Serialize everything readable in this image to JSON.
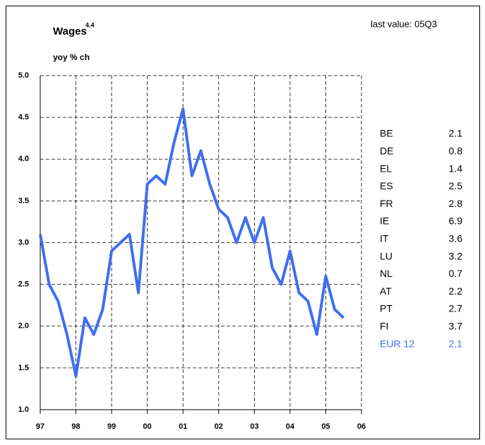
{
  "chart_data": {
    "type": "line",
    "title": "Wages",
    "title_note": "4.4",
    "subtitle": "yoy % ch",
    "annotation": "last value: 05Q3",
    "x": [
      1997,
      1997.25,
      1997.5,
      1997.75,
      1998,
      1998.25,
      1998.5,
      1998.75,
      1999,
      1999.25,
      1999.5,
      1999.75,
      2000,
      2000.25,
      2000.5,
      2000.75,
      2001,
      2001.25,
      2001.5,
      2001.75,
      2002,
      2002.25,
      2002.5,
      2002.75,
      2003,
      2003.25,
      2003.5,
      2003.75,
      2004,
      2004.25,
      2004.5,
      2004.75,
      2005,
      2005.25,
      2005.5
    ],
    "series": [
      {
        "color": "#3f6ef0",
        "values": [
          3.1,
          2.5,
          2.3,
          1.9,
          1.4,
          2.1,
          1.9,
          2.2,
          2.9,
          3.0,
          3.1,
          2.4,
          3.7,
          3.8,
          3.7,
          4.2,
          4.6,
          3.8,
          4.1,
          3.7,
          3.4,
          3.3,
          3.0,
          3.3,
          3.0,
          3.3,
          2.7,
          2.5,
          2.9,
          2.4,
          2.3,
          1.9,
          2.6,
          2.2,
          2.1
        ]
      }
    ],
    "xlim": [
      1997,
      2006
    ],
    "xticks": [
      {
        "value": 1997,
        "label": "97"
      },
      {
        "value": 1998,
        "label": "98"
      },
      {
        "value": 1999,
        "label": "99"
      },
      {
        "value": 2000,
        "label": "00"
      },
      {
        "value": 2001,
        "label": "01"
      },
      {
        "value": 2002,
        "label": "02"
      },
      {
        "value": 2003,
        "label": "03"
      },
      {
        "value": 2004,
        "label": "04"
      },
      {
        "value": 2005,
        "label": "05"
      },
      {
        "value": 2006,
        "label": "06"
      }
    ],
    "ylim": [
      1.0,
      5.0
    ],
    "yticks": [
      {
        "value": 1.0,
        "label": "1.0"
      },
      1.5,
      {
        "value": 2.0,
        "label": "2.0"
      },
      2.5,
      {
        "value": 3.0,
        "label": "3.0"
      },
      3.5,
      {
        "value": 4.0,
        "label": "4.0"
      },
      4.5,
      {
        "value": 5.0,
        "label": "5.0"
      }
    ],
    "grid": true,
    "side_table": [
      [
        "BE",
        2.1
      ],
      [
        "DE",
        0.8
      ],
      [
        "EL",
        1.4
      ],
      [
        "ES",
        2.5
      ],
      [
        "FR",
        2.8
      ],
      [
        "IE",
        6.9
      ],
      [
        "IT",
        3.6
      ],
      [
        "LU",
        3.2
      ],
      [
        "NL",
        0.7
      ],
      [
        "AT",
        2.2
      ],
      [
        "PT",
        2.7
      ],
      [
        "FI",
        3.7
      ],
      [
        "EUR 12",
        2.1
      ]
    ],
    "highlight_color": "#3f6ef0"
  }
}
